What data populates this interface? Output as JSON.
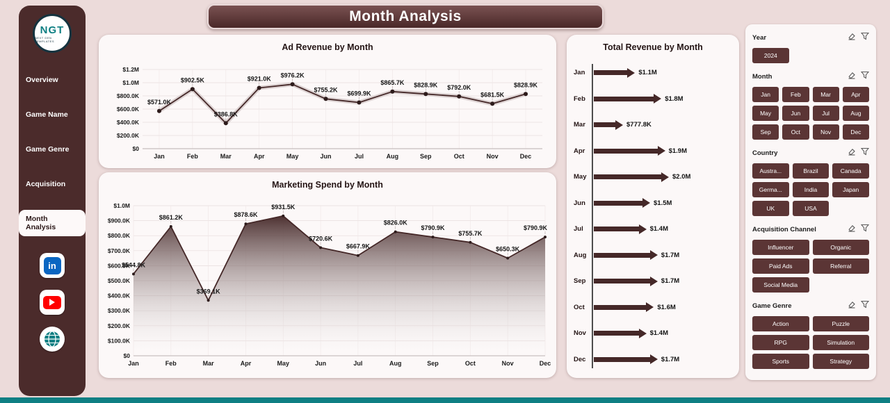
{
  "header": {
    "title": "Month Analysis"
  },
  "colors": {
    "accent": "#452828",
    "accent_dark": "#4b2b2b",
    "button": "#5b3535",
    "teal": "#0e7f83",
    "linkedin": "#0a66c2",
    "youtube": "#ff0000",
    "background": "#ecdbda",
    "card": "#fcf8f8"
  },
  "sidebar": {
    "logo": {
      "text": "NGT",
      "subtext": "NEXT GEN TEMPLATES"
    },
    "items": [
      {
        "label": "Overview",
        "active": false
      },
      {
        "label": "Game Name",
        "active": false
      },
      {
        "label": "Game Genre",
        "active": false
      },
      {
        "label": "Acquisition",
        "active": false
      },
      {
        "label": "Month Analysis",
        "active": true
      }
    ],
    "social_icons": [
      "linkedin-icon",
      "youtube-icon",
      "globe-icon"
    ]
  },
  "chart_data": [
    {
      "type": "line",
      "title": "Ad Revenue by Month",
      "categories": [
        "Jan",
        "Feb",
        "Mar",
        "Apr",
        "May",
        "Jun",
        "Jul",
        "Aug",
        "Sep",
        "Oct",
        "Nov",
        "Dec"
      ],
      "values": [
        571000,
        902500,
        386800,
        921000,
        976200,
        755200,
        699900,
        865700,
        828900,
        792000,
        681500,
        828900
      ],
      "labels": [
        "$571.0K",
        "$902.5K",
        "$386.8K",
        "$921.0K",
        "$976.2K",
        "$755.2K",
        "$699.9K",
        "$865.7K",
        "$828.9K",
        "$792.0K",
        "$681.5K",
        "$828.9K"
      ],
      "xlabel": "",
      "ylabel": "",
      "ylim": [
        0,
        1200000
      ],
      "ytick_labels": [
        "$0",
        "$200.0K",
        "$400.0K",
        "$600.0K",
        "$800.0K",
        "$1.0M",
        "$1.2M"
      ],
      "grid": true,
      "legend": false
    },
    {
      "type": "area",
      "title": "Marketing Spend by Month",
      "categories": [
        "Jan",
        "Feb",
        "Mar",
        "Apr",
        "May",
        "Jun",
        "Jul",
        "Aug",
        "Sep",
        "Oct",
        "Nov",
        "Dec"
      ],
      "values": [
        544800,
        861200,
        369100,
        878600,
        931500,
        720600,
        667900,
        826000,
        790900,
        755700,
        650300,
        790900
      ],
      "labels": [
        "$544.8K",
        "$861.2K",
        "$369.1K",
        "$878.6K",
        "$931.5K",
        "$720.6K",
        "$667.9K",
        "$826.0K",
        "$790.9K",
        "$755.7K",
        "$650.3K",
        "$790.9K"
      ],
      "xlabel": "",
      "ylabel": "",
      "ylim": [
        0,
        1000000
      ],
      "ytick_labels": [
        "$0",
        "$100.0K",
        "$200.0K",
        "$300.0K",
        "$400.0K",
        "$500.0K",
        "$600.0K",
        "$700.0K",
        "$800.0K",
        "$900.0K",
        "$1.0M"
      ],
      "grid": true,
      "legend": false
    },
    {
      "type": "bar",
      "orientation": "horizontal",
      "title": "Total Revenue by Month",
      "categories": [
        "Jan",
        "Feb",
        "Mar",
        "Apr",
        "May",
        "Jun",
        "Jul",
        "Aug",
        "Sep",
        "Oct",
        "Nov",
        "Dec"
      ],
      "values": [
        1100000,
        1800000,
        777800,
        1900000,
        2000000,
        1500000,
        1400000,
        1700000,
        1700000,
        1600000,
        1400000,
        1700000
      ],
      "labels": [
        "$1.1M",
        "$1.8M",
        "$777.8K",
        "$1.9M",
        "$2.0M",
        "$1.5M",
        "$1.4M",
        "$1.7M",
        "$1.7M",
        "$1.6M",
        "$1.4M",
        "$1.7M"
      ],
      "xlim": [
        0,
        2000000
      ],
      "grid": false,
      "legend": false
    }
  ],
  "filters": {
    "header_icons": [
      "clear-selections-icon",
      "filter-icon"
    ],
    "sections": [
      {
        "label": "Year",
        "columns": 3,
        "options": [
          "2024"
        ]
      },
      {
        "label": "Month",
        "columns": 4,
        "options": [
          "Jan",
          "Feb",
          "Mar",
          "Apr",
          "May",
          "Jun",
          "Jul",
          "Aug",
          "Sep",
          "Oct",
          "Nov",
          "Dec"
        ]
      },
      {
        "label": "Country",
        "columns": 3,
        "options": [
          "Austra...",
          "Brazil",
          "Canada",
          "Germa...",
          "India",
          "Japan",
          "UK",
          "USA"
        ]
      },
      {
        "label": "Acquisition Channel",
        "columns": 2,
        "options": [
          "Influencer",
          "Organic",
          "Paid Ads",
          "Referral",
          "Social Media"
        ]
      },
      {
        "label": "Game Genre",
        "columns": 2,
        "options": [
          "Action",
          "Puzzle",
          "RPG",
          "Simulation",
          "Sports",
          "Strategy"
        ]
      }
    ]
  }
}
